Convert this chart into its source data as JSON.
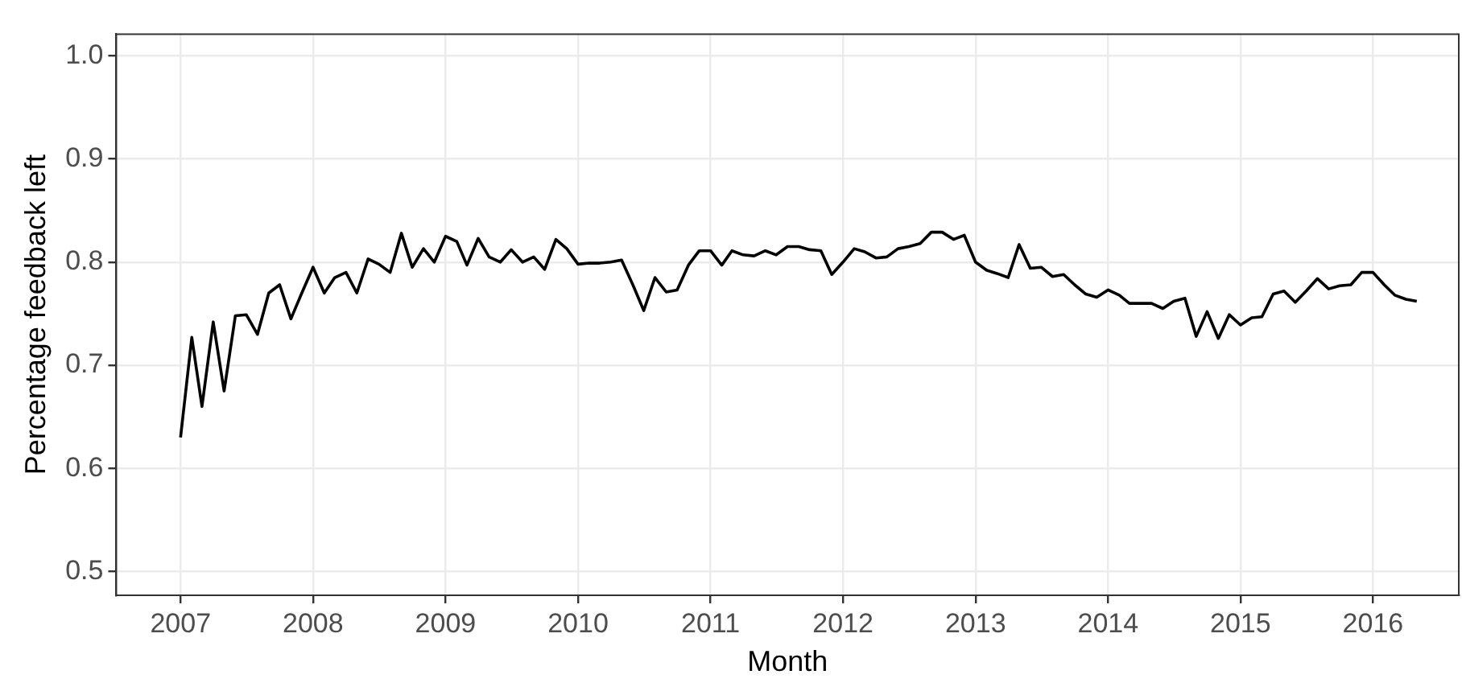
{
  "chart_data": {
    "type": "line",
    "xlabel": "Month",
    "ylabel": "Percentage feedback left",
    "x": [
      "2007-01",
      "2007-02",
      "2007-03",
      "2007-04",
      "2007-05",
      "2007-06",
      "2007-07",
      "2007-08",
      "2007-09",
      "2007-10",
      "2007-11",
      "2007-12",
      "2008-01",
      "2008-02",
      "2008-03",
      "2008-04",
      "2008-05",
      "2008-06",
      "2008-07",
      "2008-08",
      "2008-09",
      "2008-10",
      "2008-11",
      "2008-12",
      "2009-01",
      "2009-02",
      "2009-03",
      "2009-04",
      "2009-05",
      "2009-06",
      "2009-07",
      "2009-08",
      "2009-09",
      "2009-10",
      "2009-11",
      "2009-12",
      "2010-01",
      "2010-02",
      "2010-03",
      "2010-04",
      "2010-05",
      "2010-06",
      "2010-07",
      "2010-08",
      "2010-09",
      "2010-10",
      "2010-11",
      "2010-12",
      "2011-01",
      "2011-02",
      "2011-03",
      "2011-04",
      "2011-05",
      "2011-06",
      "2011-07",
      "2011-08",
      "2011-09",
      "2011-10",
      "2011-11",
      "2011-12",
      "2012-01",
      "2012-02",
      "2012-03",
      "2012-04",
      "2012-05",
      "2012-06",
      "2012-07",
      "2012-08",
      "2012-09",
      "2012-10",
      "2012-11",
      "2012-12",
      "2013-01",
      "2013-02",
      "2013-03",
      "2013-04",
      "2013-05",
      "2013-06",
      "2013-07",
      "2013-08",
      "2013-09",
      "2013-10",
      "2013-11",
      "2013-12",
      "2014-01",
      "2014-02",
      "2014-03",
      "2014-04",
      "2014-05",
      "2014-06",
      "2014-07",
      "2014-08",
      "2014-09",
      "2014-10",
      "2014-11",
      "2014-12",
      "2015-01",
      "2015-02",
      "2015-03",
      "2015-04",
      "2015-05",
      "2015-06",
      "2015-07",
      "2015-08",
      "2015-09",
      "2015-10",
      "2015-11",
      "2015-12",
      "2016-01",
      "2016-02",
      "2016-03",
      "2016-04",
      "2016-05"
    ],
    "series": [
      {
        "color": "#000000",
        "values": [
          0.63,
          0.727,
          0.66,
          0.742,
          0.675,
          0.748,
          0.749,
          0.73,
          0.77,
          0.778,
          0.745,
          0.77,
          0.795,
          0.77,
          0.785,
          0.79,
          0.77,
          0.803,
          0.798,
          0.79,
          0.828,
          0.795,
          0.813,
          0.8,
          0.825,
          0.82,
          0.797,
          0.823,
          0.805,
          0.8,
          0.812,
          0.8,
          0.805,
          0.793,
          0.822,
          0.813,
          0.798,
          0.799,
          0.799,
          0.8,
          0.802,
          0.778,
          0.753,
          0.785,
          0.771,
          0.773,
          0.797,
          0.811,
          0.811,
          0.797,
          0.811,
          0.807,
          0.806,
          0.811,
          0.807,
          0.815,
          0.815,
          0.812,
          0.811,
          0.788,
          0.8,
          0.813,
          0.81,
          0.804,
          0.805,
          0.813,
          0.815,
          0.818,
          0.829,
          0.829,
          0.822,
          0.826,
          0.8,
          0.792,
          0.789,
          0.785,
          0.817,
          0.794,
          0.795,
          0.786,
          0.788,
          0.778,
          0.769,
          0.766,
          0.773,
          0.768,
          0.76,
          0.76,
          0.76,
          0.755,
          0.762,
          0.765,
          0.728,
          0.752,
          0.726,
          0.749,
          0.739,
          0.746,
          0.747,
          0.769,
          0.772,
          0.761,
          0.772,
          0.784,
          0.774,
          0.777,
          0.778,
          0.79,
          0.79,
          0.778,
          0.768,
          0.764,
          0.762
        ]
      }
    ],
    "xlim": [
      "2006-07-08",
      "2016-08-25"
    ],
    "xticks": [
      "2007",
      "2008",
      "2009",
      "2010",
      "2011",
      "2012",
      "2013",
      "2014",
      "2015",
      "2016"
    ],
    "ylim": [
      0.477,
      1.021
    ],
    "yticks": [
      {
        "value": 0.5,
        "label": "0.5"
      },
      {
        "value": 0.6,
        "label": "0.6"
      },
      {
        "value": 0.7,
        "label": "0.7"
      },
      {
        "value": 0.8,
        "label": "0.8"
      },
      {
        "value": 0.9,
        "label": "0.9"
      },
      {
        "value": 1.0,
        "label": "1.0"
      }
    ],
    "grid": true,
    "legend": false,
    "marker": "none",
    "line_style": "solid"
  }
}
